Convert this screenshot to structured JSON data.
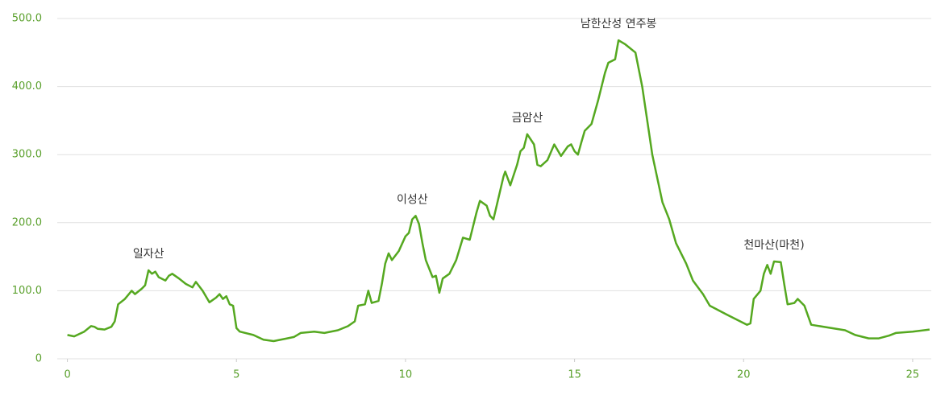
{
  "chart_data": {
    "type": "line",
    "x": [
      0,
      0.2,
      0.5,
      0.7,
      0.8,
      0.9,
      1.1,
      1.3,
      1.4,
      1.5,
      1.7,
      1.9,
      2.0,
      2.2,
      2.3,
      2.4,
      2.5,
      2.6,
      2.7,
      2.9,
      3.0,
      3.1,
      3.3,
      3.5,
      3.7,
      3.8,
      4.0,
      4.2,
      4.4,
      4.5,
      4.6,
      4.7,
      4.8,
      4.9,
      5.0,
      5.1,
      5.5,
      5.8,
      6.1,
      6.5,
      6.7,
      6.9,
      7.3,
      7.6,
      8.0,
      8.3,
      8.5,
      8.6,
      8.8,
      8.9,
      9.0,
      9.2,
      9.3,
      9.4,
      9.5,
      9.6,
      9.8,
      10.0,
      10.1,
      10.2,
      10.3,
      10.4,
      10.5,
      10.6,
      10.8,
      10.9,
      11.0,
      11.1,
      11.3,
      11.5,
      11.7,
      11.9,
      12.1,
      12.2,
      12.4,
      12.5,
      12.6,
      12.9,
      12.95,
      13.1,
      13.3,
      13.4,
      13.5,
      13.6,
      13.8,
      13.9,
      14.0,
      14.2,
      14.4,
      14.6,
      14.8,
      14.9,
      15.0,
      15.1,
      15.2,
      15.3,
      15.5,
      15.7,
      15.9,
      16.0,
      16.2,
      16.3,
      16.5,
      16.6,
      16.8,
      17.0,
      17.3,
      17.6,
      17.8,
      18.0,
      18.3,
      18.5,
      18.8,
      19.0,
      19.5,
      19.9,
      20.1,
      20.2,
      20.3,
      20.5,
      20.6,
      20.7,
      20.8,
      20.9,
      21.1,
      21.2,
      21.3,
      21.5,
      21.6,
      21.8,
      22.0,
      22.5,
      23.0,
      23.3,
      23.7,
      24.0,
      24.3,
      24.5,
      25.0,
      25.5
    ],
    "series": [
      {
        "color": "#55a820",
        "values": [
          35,
          33,
          40,
          48,
          47,
          44,
          43,
          47,
          55,
          80,
          88,
          100,
          95,
          103,
          108,
          130,
          125,
          128,
          120,
          115,
          122,
          125,
          118,
          110,
          105,
          113,
          100,
          83,
          90,
          95,
          88,
          92,
          80,
          78,
          45,
          40,
          35,
          28,
          26,
          30,
          32,
          38,
          40,
          38,
          42,
          48,
          55,
          78,
          80,
          100,
          82,
          85,
          110,
          140,
          155,
          145,
          158,
          180,
          185,
          205,
          210,
          198,
          170,
          145,
          120,
          122,
          97,
          118,
          125,
          145,
          178,
          175,
          215,
          232,
          225,
          210,
          205,
          268,
          275,
          255,
          285,
          305,
          310,
          330,
          315,
          285,
          283,
          292,
          315,
          298,
          312,
          315,
          305,
          300,
          318,
          335,
          345,
          380,
          420,
          435,
          440,
          468,
          462,
          458,
          450,
          400,
          300,
          230,
          205,
          170,
          140,
          115,
          95,
          78,
          65,
          55,
          50,
          52,
          88,
          100,
          125,
          138,
          125,
          143,
          142,
          110,
          80,
          82,
          88,
          78,
          50,
          46,
          42,
          35,
          30,
          30,
          34,
          38,
          40,
          43
        ]
      }
    ],
    "xlim": [
      -0.3,
      25.55
    ],
    "xticks": [
      0,
      5,
      10,
      15,
      20,
      25
    ],
    "ylim": [
      0,
      500
    ],
    "yticks": [
      0,
      {
        "value": 100,
        "label": "100.0"
      },
      {
        "value": 200,
        "label": "200.0"
      },
      {
        "value": 300,
        "label": "300.0"
      },
      {
        "value": 400,
        "label": "400.0"
      },
      {
        "value": 500,
        "label": "500.0"
      }
    ],
    "grid": true,
    "annotations": [
      {
        "text": "일자산",
        "x": 2.4,
        "y": 130
      },
      {
        "text": "이성산",
        "x": 10.2,
        "y": 210
      },
      {
        "text": "금암산",
        "x": 13.6,
        "y": 330
      },
      {
        "text": "남한산성 연주봉",
        "x": 16.3,
        "y": 468
      },
      {
        "text": "천마산(마천)",
        "x": 20.9,
        "y": 143
      }
    ]
  }
}
